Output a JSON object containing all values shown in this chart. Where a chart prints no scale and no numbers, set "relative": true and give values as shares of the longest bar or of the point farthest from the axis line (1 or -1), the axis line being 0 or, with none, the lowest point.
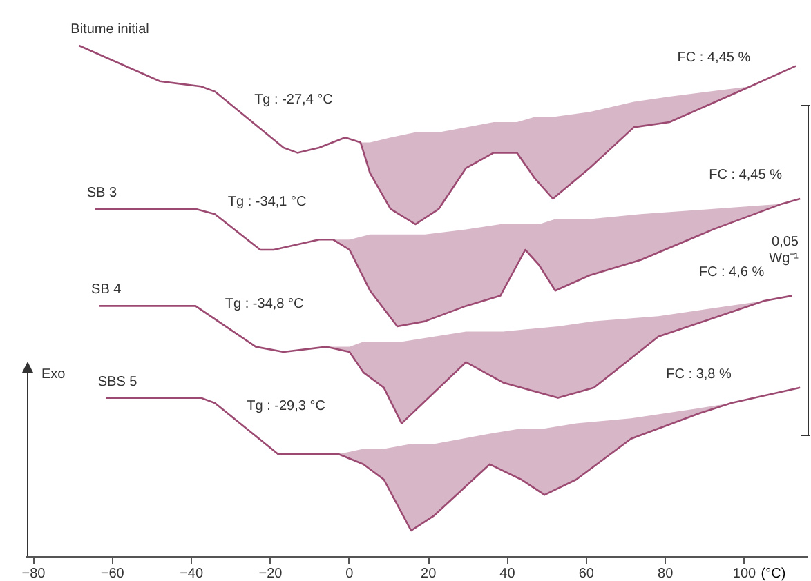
{
  "chart_data": {
    "type": "line",
    "relative": true,
    "xlabel": "(°C)",
    "xlim": [
      -82,
      116
    ],
    "xticks": [
      -80,
      -60,
      -40,
      -20,
      0,
      20,
      40,
      60,
      80,
      100
    ],
    "grid": false,
    "line_style": "solid",
    "series": [
      {
        "name": "Bitume initial",
        "color": "#9c4a72",
        "x": [
          -68.3,
          -47.8,
          -37.4,
          -33.9,
          -16.5,
          -13.0,
          -7.5,
          -0.9,
          3.0,
          5.4,
          10.6,
          16.9,
          22.8,
          29.7,
          36.7,
          42.6,
          47.1,
          51.7,
          61.0,
          72.2,
          81.2,
          101.7,
          113.2
        ],
        "values": [
          1.0,
          0.93,
          0.92,
          0.91,
          0.8,
          0.79,
          0.8,
          0.82,
          0.81,
          0.75,
          0.68,
          0.65,
          0.68,
          0.76,
          0.79,
          0.79,
          0.74,
          0.7,
          0.76,
          0.84,
          0.85,
          0.92,
          0.96
        ],
        "lower": [
          null,
          null,
          null,
          null,
          null,
          null,
          null,
          null,
          0.81,
          0.75,
          0.68,
          0.65,
          0.68,
          0.76,
          0.79,
          0.79,
          0.74,
          0.7,
          0.76,
          0.84,
          0.85,
          0.92,
          null
        ],
        "upper": [
          null,
          null,
          null,
          null,
          null,
          null,
          null,
          null,
          0.81,
          0.81,
          0.82,
          0.83,
          0.83,
          0.84,
          0.85,
          0.85,
          0.86,
          0.86,
          0.87,
          0.89,
          0.9,
          0.92,
          null
        ]
      },
      {
        "name": "SB 3",
        "color": "#9c4a72",
        "x": [
          -64.2,
          -38.8,
          -33.9,
          -22.4,
          -19.0,
          -7.5,
          -4.0,
          0.2,
          5.4,
          12.3,
          19.3,
          29.7,
          38.4,
          44.7,
          48.2,
          52.3,
          61.0,
          73.9,
          92.3,
          109.7,
          114.3
        ],
        "values": [
          0.68,
          0.68,
          0.67,
          0.6,
          0.6,
          0.62,
          0.62,
          0.6,
          0.52,
          0.45,
          0.46,
          0.49,
          0.51,
          0.6,
          0.57,
          0.52,
          0.55,
          0.58,
          0.64,
          0.69,
          0.7
        ],
        "lower": [
          null,
          null,
          null,
          null,
          null,
          null,
          0.62,
          0.6,
          0.52,
          0.45,
          0.46,
          0.49,
          0.51,
          0.6,
          0.57,
          0.52,
          0.55,
          0.58,
          0.64,
          0.69,
          null
        ],
        "upper": [
          null,
          null,
          null,
          null,
          null,
          null,
          0.62,
          0.62,
          0.63,
          0.63,
          0.63,
          0.64,
          0.65,
          0.65,
          0.65,
          0.66,
          0.66,
          0.67,
          0.68,
          0.69,
          null
        ]
      },
      {
        "name": "SB 4",
        "color": "#9c4a72",
        "x": [
          -63.1,
          -38.8,
          -23.5,
          -16.5,
          -5.7,
          0.2,
          3.7,
          8.9,
          13.4,
          29.7,
          39.1,
          53.0,
          62.1,
          78.4,
          105.2,
          112.2
        ],
        "values": [
          0.49,
          0.49,
          0.41,
          0.4,
          0.41,
          0.4,
          0.36,
          0.33,
          0.26,
          0.38,
          0.34,
          0.31,
          0.33,
          0.43,
          0.5,
          0.51
        ],
        "lower": [
          null,
          null,
          null,
          null,
          0.41,
          0.4,
          0.36,
          0.33,
          0.26,
          0.38,
          0.34,
          0.31,
          0.33,
          0.43,
          0.5,
          null
        ],
        "upper": [
          null,
          null,
          null,
          null,
          0.41,
          0.41,
          0.42,
          0.42,
          0.42,
          0.44,
          0.44,
          0.45,
          0.46,
          0.47,
          0.5,
          null
        ]
      },
      {
        "name": "SBS 5",
        "color": "#9c4a72",
        "x": [
          -61.4,
          -37.4,
          -33.9,
          -17.9,
          -7.5,
          -2.6,
          3.7,
          8.9,
          15.8,
          21.7,
          35.7,
          43.7,
          49.6,
          57.6,
          71.5,
          88.9,
          96.9,
          114.3
        ],
        "values": [
          0.31,
          0.31,
          0.3,
          0.2,
          0.2,
          0.2,
          0.18,
          0.15,
          0.05,
          0.08,
          0.18,
          0.15,
          0.12,
          0.15,
          0.23,
          0.28,
          0.3,
          0.33
        ],
        "lower": [
          null,
          null,
          null,
          null,
          null,
          0.2,
          0.18,
          0.15,
          0.05,
          0.08,
          0.18,
          0.15,
          0.12,
          0.15,
          0.23,
          0.28,
          0.3,
          null
        ],
        "upper": [
          null,
          null,
          null,
          null,
          null,
          0.2,
          0.21,
          0.21,
          0.22,
          0.22,
          0.24,
          0.25,
          0.25,
          0.26,
          0.27,
          0.29,
          0.3,
          null
        ]
      }
    ],
    "annotations": [
      {
        "text": "Tg : -27,4 °C",
        "x": -27.4,
        "y": 0.87
      },
      {
        "text": "FC : 4,45 %",
        "x": 101.7,
        "y": 0.92
      },
      {
        "text": "Tg : -34,1 °C",
        "x": -34.1,
        "y": 0.67
      },
      {
        "text": "FC : 4,45 %",
        "x": 109.7,
        "y": 0.69
      },
      {
        "text": "Tg : -34,8 °C",
        "x": -34.8,
        "y": 0.47
      },
      {
        "text": "FC : 4,6 %",
        "x": 105.2,
        "y": 0.5
      },
      {
        "text": "Tg : -29,3 °C",
        "x": -29.3,
        "y": 0.27
      },
      {
        "text": "FC : 3,8 %",
        "x": 96.9,
        "y": 0.3
      },
      "Exo",
      "0,05 Wg⁻¹"
    ]
  }
}
